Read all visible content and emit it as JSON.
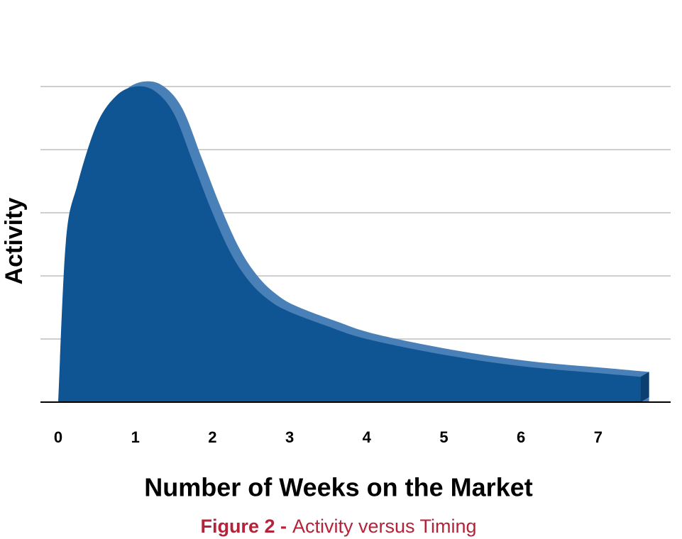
{
  "chart_data": {
    "type": "area",
    "y_label": "Activity",
    "x_label": "Number of Weeks on the Market",
    "caption": {
      "label": "Figure 2 -",
      "text": "Activity versus Timing"
    },
    "x": [
      0,
      0.1,
      0.25,
      0.5,
      0.75,
      1,
      1.25,
      1.5,
      1.75,
      2,
      2.25,
      2.5,
      2.75,
      3,
      3.5,
      4,
      5,
      6,
      7,
      7.55
    ],
    "values": [
      0,
      2.55,
      3.45,
      4.4,
      4.85,
      5.0,
      4.93,
      4.57,
      3.79,
      3.0,
      2.33,
      1.88,
      1.6,
      1.43,
      1.2,
      1.0,
      0.75,
      0.57,
      0.46,
      0.4
    ],
    "color": "#0f5593",
    "xlim": [
      -0.23,
      7.94
    ],
    "xticks": [
      0,
      1,
      2,
      3,
      4,
      5,
      6,
      7
    ],
    "ylim": [
      0,
      5
    ],
    "yticks": [
      1,
      2,
      3,
      4,
      5
    ],
    "grid": true
  }
}
